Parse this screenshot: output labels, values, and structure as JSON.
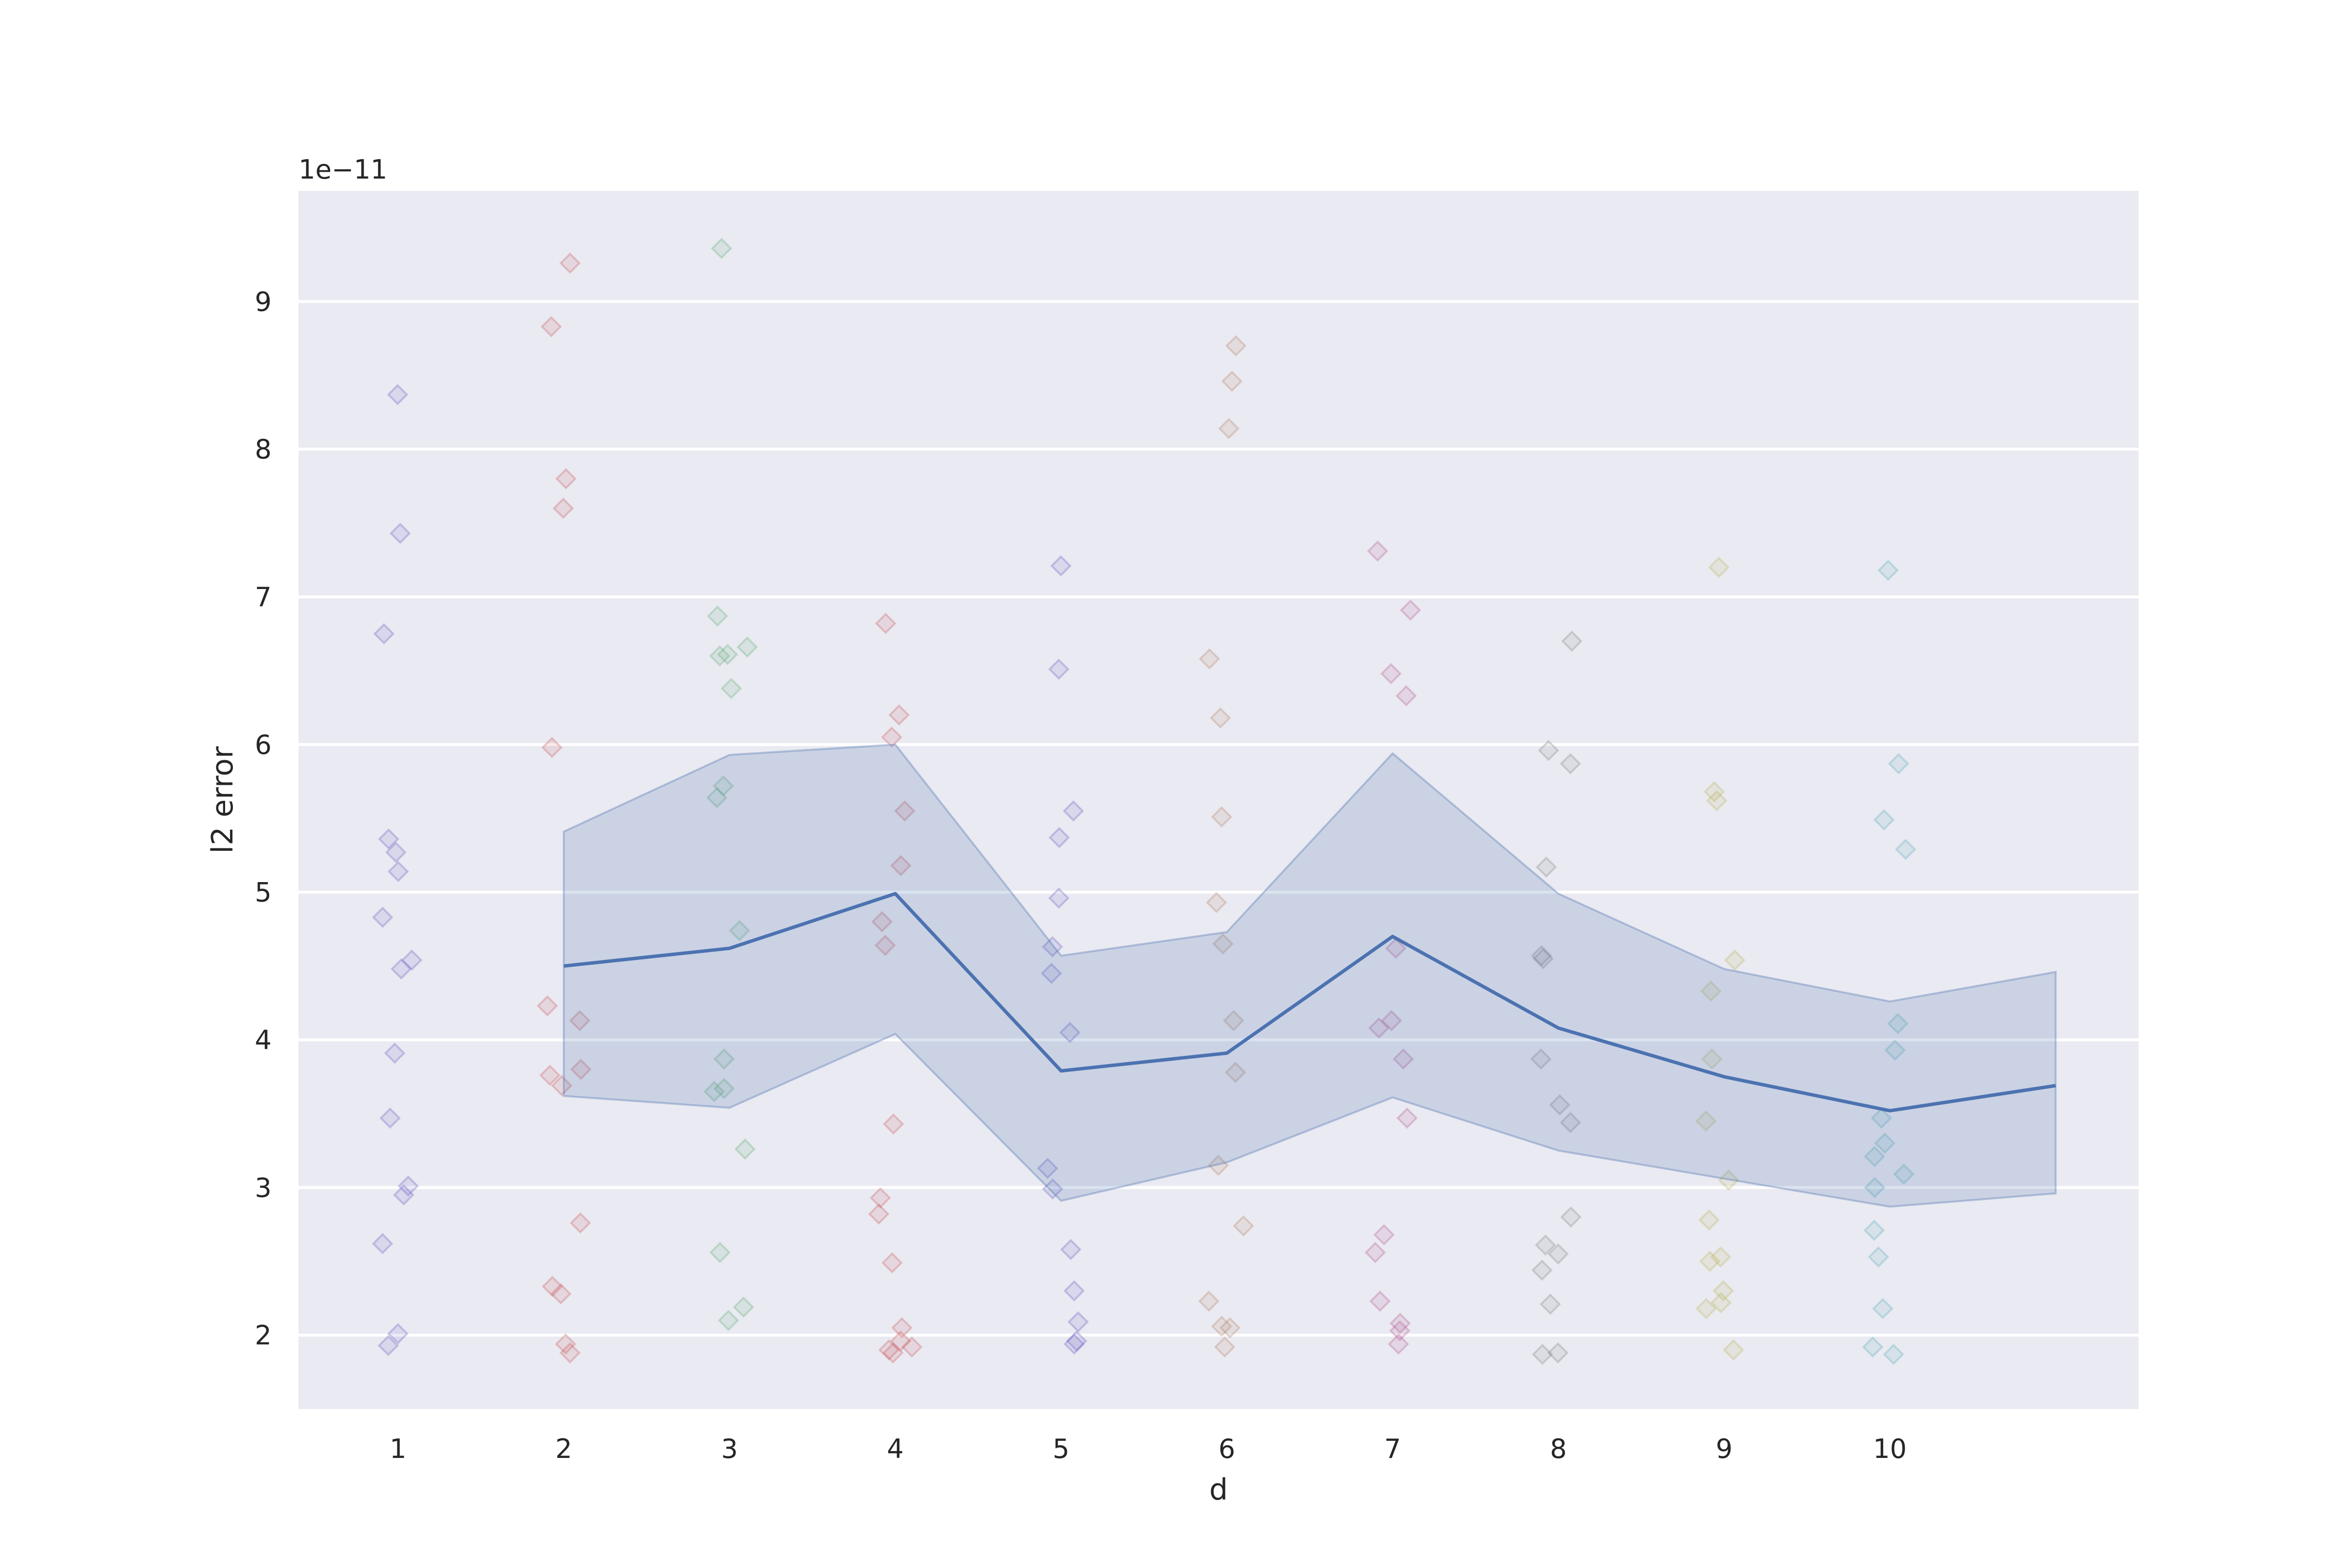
{
  "chart_data": {
    "type": "line",
    "xlabel": "d",
    "ylabel": "l2 error",
    "y_offset_label": "1e−11",
    "x_tick_labels": [
      "1",
      "2",
      "3",
      "4",
      "5",
      "6",
      "7",
      "8",
      "9",
      "10"
    ],
    "y_tick_labels": [
      "2",
      "3",
      "4",
      "5",
      "6",
      "7",
      "8",
      "9"
    ],
    "xlim": [
      0.4,
      11.5
    ],
    "ylim": [
      1.5,
      9.75
    ],
    "grid": true,
    "background_color": "#eaeaf2",
    "mean_series": {
      "color": "#4c72b0",
      "x": [
        2,
        3,
        4,
        5,
        6,
        7,
        8,
        9,
        10,
        11
      ],
      "y": [
        4.5,
        4.62,
        4.99,
        3.79,
        3.91,
        4.7,
        4.08,
        3.75,
        3.52,
        3.69
      ],
      "ci_low": [
        3.62,
        3.54,
        4.04,
        2.91,
        3.17,
        3.61,
        3.25,
        3.06,
        2.87,
        2.96
      ],
      "ci_high": [
        5.41,
        5.93,
        6.0,
        4.57,
        4.73,
        5.94,
        4.99,
        4.48,
        4.26,
        4.46
      ]
    },
    "scatter_groups": [
      {
        "x": 1,
        "color": "#5c4fc0",
        "values": [
          8.37,
          7.43,
          6.75,
          5.36,
          5.27,
          5.14,
          4.83,
          4.54,
          4.48,
          3.91,
          3.47,
          3.01,
          2.95,
          2.62,
          2.01,
          1.93
        ]
      },
      {
        "x": 2,
        "color": "#c44e52",
        "values": [
          9.26,
          8.83,
          7.8,
          7.6,
          5.98,
          4.23,
          4.13,
          3.8,
          3.76,
          3.69,
          2.76,
          2.33,
          2.28,
          1.94,
          1.88
        ]
      },
      {
        "x": 3,
        "color": "#55a868",
        "values": [
          9.36,
          6.87,
          6.66,
          6.61,
          6.6,
          6.38,
          5.72,
          5.64,
          4.74,
          3.87,
          3.67,
          3.65,
          3.26,
          2.56,
          2.19,
          2.1
        ]
      },
      {
        "x": 4,
        "color": "#c44e52",
        "values": [
          6.82,
          6.2,
          6.05,
          5.55,
          5.18,
          4.8,
          4.64,
          3.43,
          2.93,
          2.82,
          2.49,
          2.05,
          1.96,
          1.92,
          1.9,
          1.88
        ]
      },
      {
        "x": 5,
        "color": "#5c4fc0",
        "values": [
          7.21,
          6.51,
          5.55,
          5.37,
          4.96,
          4.63,
          4.45,
          4.05,
          3.13,
          2.99,
          2.58,
          2.3,
          2.09,
          1.96,
          1.94
        ]
      },
      {
        "x": 6,
        "color": "#b07b5a",
        "values": [
          8.7,
          8.46,
          8.14,
          6.58,
          6.18,
          5.51,
          4.93,
          4.65,
          4.13,
          3.78,
          3.15,
          2.74,
          2.23,
          2.06,
          2.05,
          1.92
        ]
      },
      {
        "x": 7,
        "color": "#b04a8a",
        "values": [
          7.31,
          6.91,
          6.48,
          6.33,
          4.62,
          4.13,
          4.08,
          3.87,
          3.47,
          2.68,
          2.56,
          2.23,
          2.08,
          2.03,
          1.94
        ]
      },
      {
        "x": 8,
        "color": "#7a7a7a",
        "values": [
          6.7,
          5.96,
          5.87,
          5.17,
          4.57,
          4.55,
          3.87,
          3.56,
          3.44,
          2.8,
          2.61,
          2.55,
          2.44,
          2.21,
          1.88,
          1.87
        ]
      },
      {
        "x": 9,
        "color": "#b5b04a",
        "values": [
          7.2,
          5.68,
          5.62,
          4.54,
          4.33,
          3.87,
          3.45,
          3.05,
          2.78,
          2.53,
          2.5,
          2.3,
          2.22,
          2.18,
          1.9
        ]
      },
      {
        "x": 10,
        "color": "#4aa8b5",
        "values": [
          7.18,
          5.87,
          5.49,
          5.29,
          4.11,
          3.93,
          3.47,
          3.3,
          3.21,
          3.09,
          3.0,
          2.71,
          2.53,
          2.18,
          1.92,
          1.87
        ]
      }
    ]
  }
}
